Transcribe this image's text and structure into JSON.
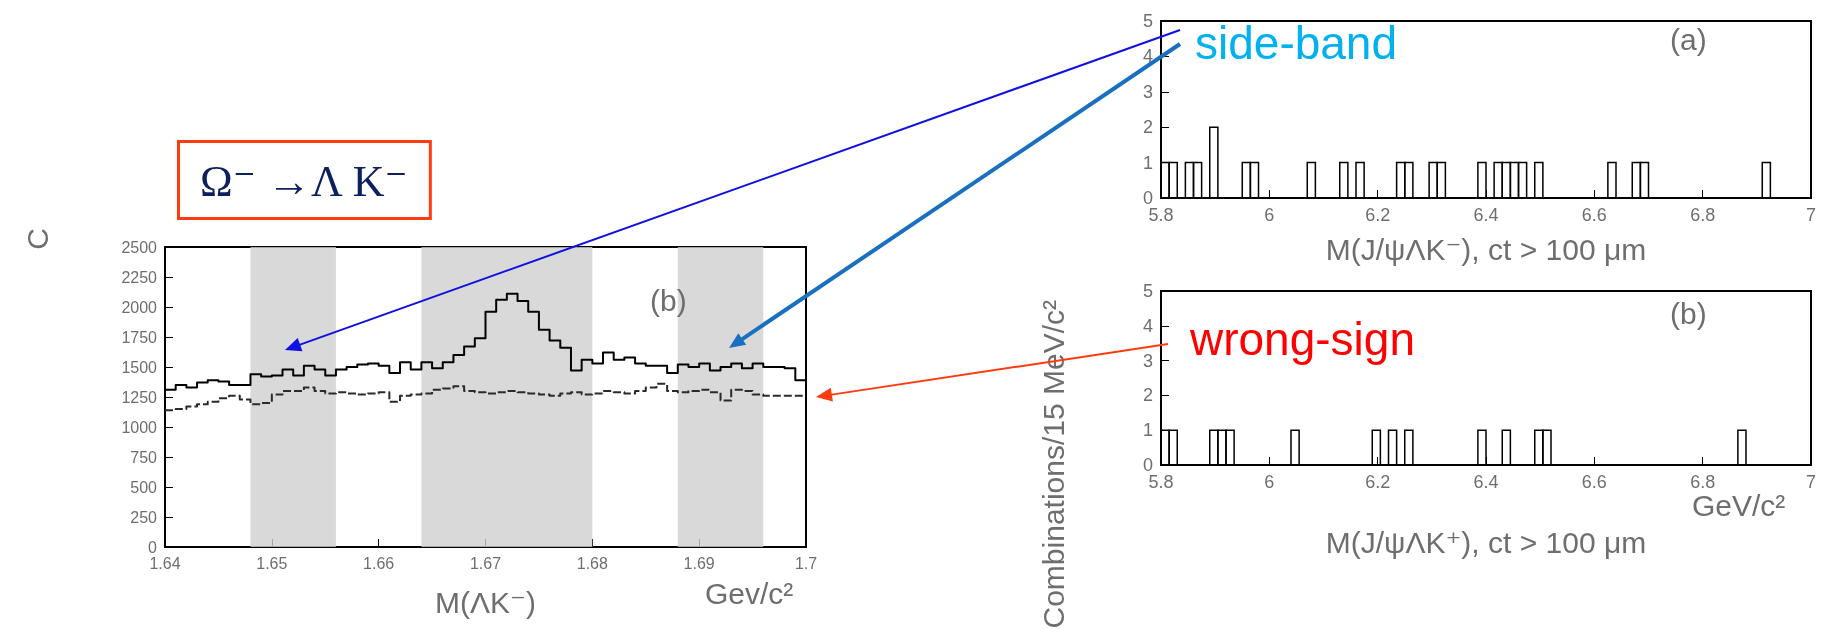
{
  "chart_data": [
    {
      "type": "histogram",
      "xlabel": "M(ΛK⁻)",
      "ylabel": "C",
      "annotations": [
        "(b)",
        "Gev/c²",
        "Ω⁻ →Λ K⁻"
      ],
      "bins": [
        1.64,
        1.641,
        1.642,
        1.643,
        1.644,
        1.645,
        1.646,
        1.647,
        1.648,
        1.649,
        1.65,
        1.651,
        1.652,
        1.653,
        1.654,
        1.655,
        1.656,
        1.657,
        1.658,
        1.659,
        1.66,
        1.661,
        1.662,
        1.663,
        1.664,
        1.665,
        1.666,
        1.667,
        1.668,
        1.669,
        1.67,
        1.671,
        1.672,
        1.673,
        1.674,
        1.675,
        1.676,
        1.677,
        1.678,
        1.679,
        1.68,
        1.681,
        1.682,
        1.683,
        1.684,
        1.685,
        1.686,
        1.687,
        1.688,
        1.689,
        1.69,
        1.691,
        1.692,
        1.693,
        1.694,
        1.695,
        1.696,
        1.697,
        1.698,
        1.699,
        1.7
      ],
      "series": [
        {
          "color": "#000000",
          "line_style": "solid",
          "values": [
            1310,
            1350,
            1330,
            1370,
            1390,
            1380,
            1350,
            1350,
            1440,
            1420,
            1430,
            1480,
            1430,
            1510,
            1480,
            1430,
            1480,
            1500,
            1520,
            1530,
            1510,
            1450,
            1540,
            1480,
            1540,
            1490,
            1540,
            1600,
            1670,
            1740,
            1960,
            2060,
            2110,
            2050,
            1960,
            1810,
            1720,
            1660,
            1470,
            1560,
            1530,
            1620,
            1560,
            1580,
            1530,
            1510,
            1510,
            1450,
            1520,
            1500,
            1530,
            1470,
            1500,
            1530,
            1490,
            1530,
            1500,
            1500,
            1490,
            1390
          ]
        },
        {
          "color": "#2a2a2a",
          "line_style": "dashed",
          "values": [
            1140,
            1150,
            1170,
            1190,
            1210,
            1240,
            1260,
            1230,
            1190,
            1200,
            1270,
            1300,
            1300,
            1330,
            1300,
            1280,
            1290,
            1280,
            1270,
            1280,
            1290,
            1210,
            1260,
            1270,
            1280,
            1310,
            1320,
            1340,
            1300,
            1290,
            1280,
            1290,
            1300,
            1290,
            1280,
            1270,
            1260,
            1280,
            1290,
            1270,
            1280,
            1300,
            1290,
            1280,
            1300,
            1330,
            1360,
            1300,
            1290,
            1300,
            1310,
            1290,
            1220,
            1310,
            1300,
            1270,
            1260,
            1260,
            1260,
            1260
          ]
        }
      ],
      "bands": [
        {
          "axis": "x",
          "from": 1.648,
          "to": 1.656,
          "color": "#cfcfcf"
        },
        {
          "axis": "x",
          "from": 1.664,
          "to": 1.68,
          "color": "#cfcfcf"
        },
        {
          "axis": "x",
          "from": 1.688,
          "to": 1.696,
          "color": "#cfcfcf"
        }
      ],
      "xlim": [
        1.64,
        1.7
      ],
      "xticks": [
        1.64,
        1.65,
        1.66,
        1.67,
        1.68,
        1.69,
        1.7
      ],
      "ylim": [
        0,
        2500
      ],
      "yticks": [
        0,
        250,
        500,
        750,
        1000,
        1250,
        1500,
        1750,
        2000,
        2250,
        2500
      ]
    },
    {
      "type": "histogram",
      "xlabel": "M(J/ψΛK⁻), ct > 100 μm",
      "ylabel": "Combinations/15 MeV/c²",
      "annotations": [
        "(a)",
        "side-band"
      ],
      "bins": [
        5.8,
        5.815,
        5.83,
        5.845,
        5.86,
        5.875,
        5.89,
        5.905,
        5.92,
        5.935,
        5.95,
        5.965,
        5.98,
        5.995,
        6.01,
        6.025,
        6.04,
        6.055,
        6.07,
        6.085,
        6.1,
        6.115,
        6.13,
        6.145,
        6.16,
        6.175,
        6.19,
        6.205,
        6.22,
        6.235,
        6.25,
        6.265,
        6.28,
        6.295,
        6.31,
        6.325,
        6.34,
        6.355,
        6.37,
        6.385,
        6.4,
        6.415,
        6.43,
        6.445,
        6.46,
        6.475,
        6.49,
        6.505,
        6.52,
        6.535,
        6.55,
        6.565,
        6.58,
        6.595,
        6.61,
        6.625,
        6.64,
        6.655,
        6.67,
        6.685,
        6.7,
        6.715,
        6.73,
        6.745,
        6.76,
        6.775,
        6.79,
        6.805,
        6.82,
        6.835,
        6.85,
        6.865,
        6.88,
        6.895,
        6.91,
        6.925,
        6.94,
        6.955,
        6.97,
        6.985,
        7.0
      ],
      "values": [
        1,
        1,
        0,
        1,
        1,
        0,
        2,
        0,
        0,
        0,
        1,
        1,
        0,
        0,
        0,
        0,
        0,
        0,
        1,
        0,
        0,
        0,
        1,
        0,
        1,
        0,
        0,
        0,
        0,
        1,
        1,
        0,
        0,
        1,
        1,
        0,
        0,
        0,
        0,
        1,
        0,
        1,
        1,
        1,
        1,
        0,
        1,
        0,
        0,
        0,
        0,
        0,
        0,
        0,
        0,
        1,
        0,
        0,
        1,
        1,
        0,
        0,
        0,
        0,
        0,
        0,
        0,
        0,
        0,
        0,
        0,
        0,
        0,
        0,
        1,
        0,
        0,
        0,
        0,
        0
      ],
      "color": "#000000",
      "xlim": [
        5.8,
        7
      ],
      "xticks": [
        5.8,
        6,
        6.2,
        6.4,
        6.6,
        6.8,
        7
      ],
      "ylim": [
        0,
        5
      ],
      "yticks": [
        0,
        1,
        2,
        3,
        4,
        5
      ]
    },
    {
      "type": "histogram",
      "xlabel": "M(J/ψΛK⁺), ct > 100 μm",
      "annotations": [
        "(b)",
        "wrong-sign",
        "GeV/c²"
      ],
      "bins": [
        5.8,
        5.815,
        5.83,
        5.845,
        5.86,
        5.875,
        5.89,
        5.905,
        5.92,
        5.935,
        5.95,
        5.965,
        5.98,
        5.995,
        6.01,
        6.025,
        6.04,
        6.055,
        6.07,
        6.085,
        6.1,
        6.115,
        6.13,
        6.145,
        6.16,
        6.175,
        6.19,
        6.205,
        6.22,
        6.235,
        6.25,
        6.265,
        6.28,
        6.295,
        6.31,
        6.325,
        6.34,
        6.355,
        6.37,
        6.385,
        6.4,
        6.415,
        6.43,
        6.445,
        6.46,
        6.475,
        6.49,
        6.505,
        6.52,
        6.535,
        6.55,
        6.565,
        6.58,
        6.595,
        6.61,
        6.625,
        6.64,
        6.655,
        6.67,
        6.685,
        6.7,
        6.715,
        6.73,
        6.745,
        6.76,
        6.775,
        6.79,
        6.805,
        6.82,
        6.835,
        6.85,
        6.865,
        6.88,
        6.895,
        6.91,
        6.925,
        6.94,
        6.955,
        6.97,
        6.985,
        7.0
      ],
      "values": [
        1,
        1,
        0,
        0,
        0,
        0,
        1,
        1,
        1,
        0,
        0,
        0,
        0,
        0,
        0,
        0,
        1,
        0,
        0,
        0,
        0,
        0,
        0,
        0,
        0,
        0,
        1,
        0,
        1,
        0,
        1,
        0,
        0,
        0,
        0,
        0,
        0,
        0,
        0,
        1,
        0,
        0,
        1,
        0,
        0,
        0,
        1,
        1,
        0,
        0,
        0,
        0,
        0,
        0,
        0,
        0,
        0,
        0,
        0,
        0,
        0,
        0,
        0,
        0,
        0,
        0,
        0,
        0,
        0,
        0,
        0,
        1,
        0,
        0,
        0,
        0,
        0,
        0,
        0,
        0
      ],
      "color": "#000000",
      "xlim": [
        5.8,
        7
      ],
      "xticks": [
        5.8,
        6,
        6.2,
        6.4,
        6.6,
        6.8,
        7
      ],
      "ylim": [
        0,
        5
      ],
      "yticks": [
        0,
        1,
        2,
        3,
        4,
        5
      ]
    }
  ]
}
